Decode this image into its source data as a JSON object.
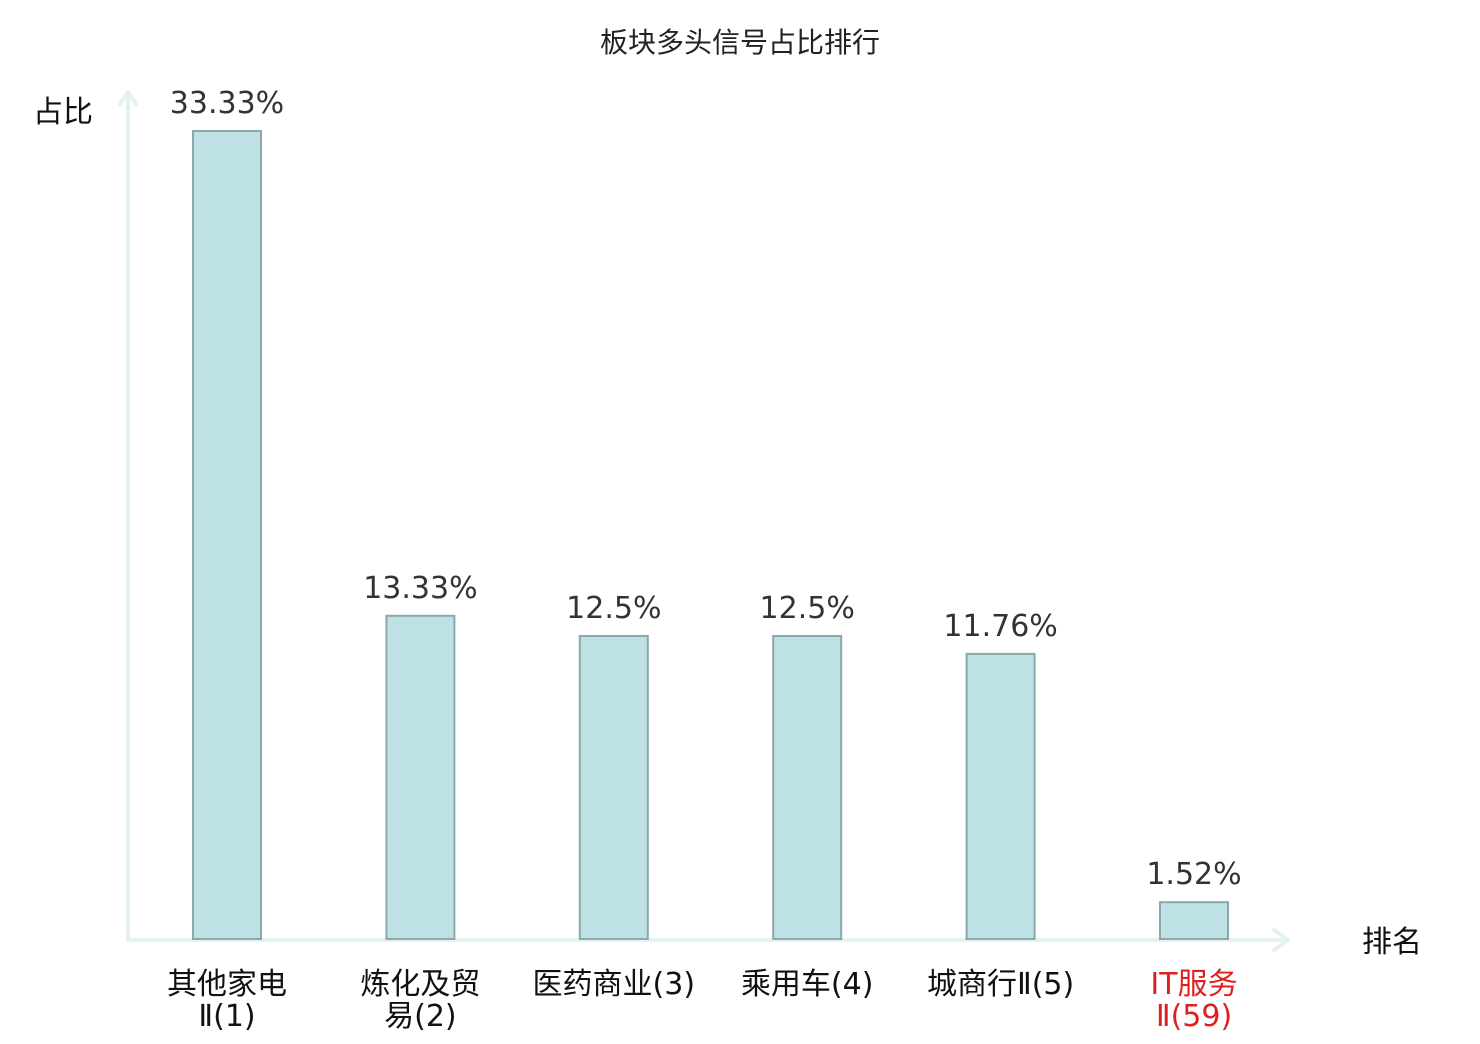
{
  "chart_data": {
    "type": "bar",
    "title": "板块多头信号占比排行",
    "ylabel": "占比",
    "xlabel": "排名",
    "ylim": [
      0,
      33.33
    ],
    "categories": [
      {
        "lines": [
          "其他家电",
          "Ⅱ(1)"
        ],
        "highlight": false
      },
      {
        "lines": [
          "炼化及贸",
          "易(2)"
        ],
        "highlight": false
      },
      {
        "lines": [
          "医药商业(3)"
        ],
        "highlight": false
      },
      {
        "lines": [
          "乘用车(4)"
        ],
        "highlight": false
      },
      {
        "lines": [
          "城商行Ⅱ(5)"
        ],
        "highlight": false
      },
      {
        "lines": [
          "IT服务",
          "Ⅱ(59)"
        ],
        "highlight": true
      }
    ],
    "values": [
      33.33,
      13.33,
      12.5,
      12.5,
      11.76,
      1.52
    ],
    "value_labels": [
      "33.33%",
      "13.33%",
      "12.5%",
      "12.5%",
      "11.76%",
      "1.52%"
    ],
    "grid": false,
    "legend": "none",
    "colors": {
      "bar_fill": "#bde1e4",
      "bar_stroke": "#8aa8aa",
      "axis": "#e3f3f1",
      "highlight_text": "#e02020"
    }
  }
}
